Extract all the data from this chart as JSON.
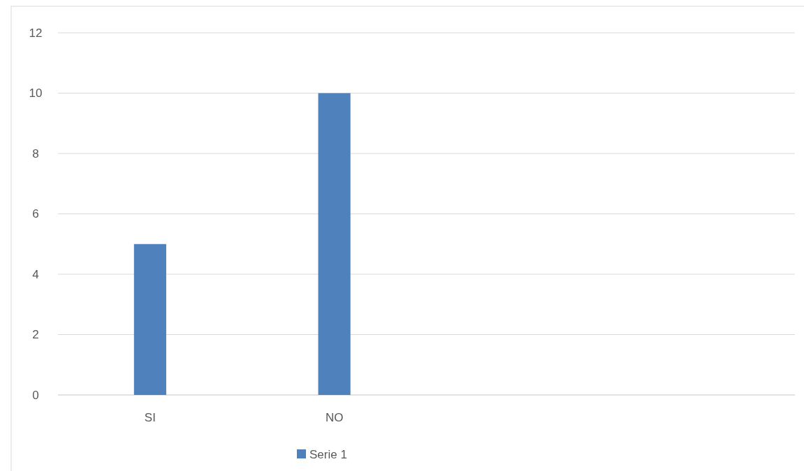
{
  "chart_data": {
    "type": "bar",
    "categories": [
      "SI",
      "NO",
      null,
      null
    ],
    "series": [
      {
        "name": "Serie 1",
        "color": "#4f81bd",
        "values": [
          5,
          10,
          null,
          null
        ]
      }
    ],
    "ylim": [
      0,
      12
    ],
    "yticks": [
      0,
      2,
      4,
      6,
      8,
      10,
      12
    ],
    "grid": "y",
    "legend": "bottom"
  }
}
